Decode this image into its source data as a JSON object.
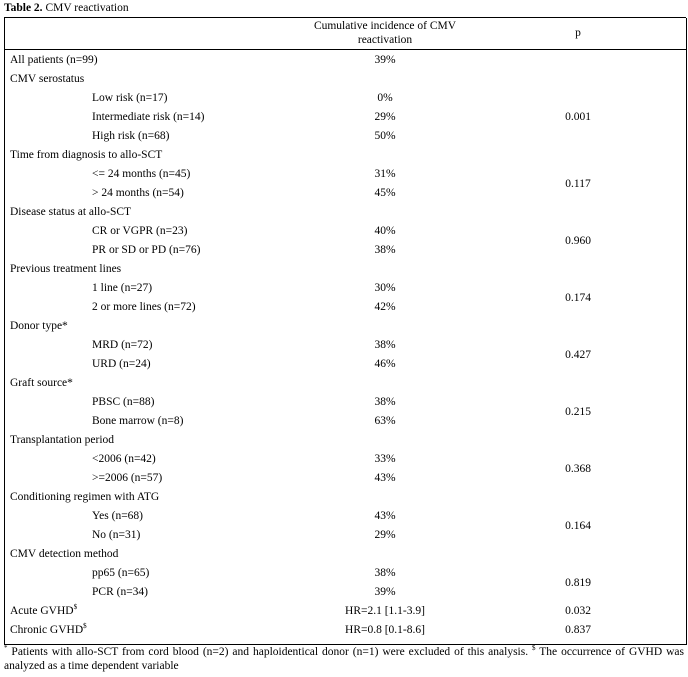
{
  "caption": {
    "label": "Table 2.",
    "text": "CMV reactivation"
  },
  "header": {
    "incidence_line1": "Cumulative incidence  of CMV",
    "incidence_line2": "reactivation",
    "p": "p"
  },
  "rows": [
    {
      "label": "All patients  (n=99)",
      "value": "39%",
      "indent": false
    },
    {
      "label": "CMV serostatus",
      "value": "",
      "indent": false
    },
    {
      "label": "Low risk (n=17)",
      "value": "0%",
      "indent": true
    },
    {
      "label": "Intermediate  risk (n=14)",
      "value": "29%",
      "indent": true
    },
    {
      "label": "High risk (n=68)",
      "value": "50%",
      "indent": true
    },
    {
      "label": "Time from diagnosis to allo-SCT",
      "value": "",
      "indent": false
    },
    {
      "label": "<= 24 months (n=45)",
      "value": "31%",
      "indent": true
    },
    {
      "label": "> 24 months (n=54)",
      "value": "45%",
      "indent": true
    },
    {
      "label": "Disease status at allo-SCT",
      "value": "",
      "indent": false
    },
    {
      "label": "CR or VGPR (n=23)",
      "value": "40%",
      "indent": true
    },
    {
      "label": "PR or SD or PD (n=76)",
      "value": "38%",
      "indent": true
    },
    {
      "label": "Previous treatment  lines",
      "value": "",
      "indent": false
    },
    {
      "label": "1 line (n=27)",
      "value": "30%",
      "indent": true
    },
    {
      "label": "2 or more lines (n=72)",
      "value": "42%",
      "indent": true
    },
    {
      "label": "Donor type*",
      "value": "",
      "indent": false
    },
    {
      "label": "MRD (n=72)",
      "value": "38%",
      "indent": true
    },
    {
      "label": "URD (n=24)",
      "value": "46%",
      "indent": true
    },
    {
      "label": "Graft source*",
      "value": "",
      "indent": false
    },
    {
      "label": "PBSC (n=88)",
      "value": "38%",
      "indent": true
    },
    {
      "label": "Bone marrow  (n=8)",
      "value": "63%",
      "indent": true
    },
    {
      "label": "Transplantation period",
      "value": "",
      "indent": false
    },
    {
      "label": "<2006 (n=42)",
      "value": "33%",
      "indent": true
    },
    {
      "label": ">=2006 (n=57)",
      "value": "43%",
      "indent": true
    },
    {
      "label": "Conditioning regimen  with ATG",
      "value": "",
      "indent": false
    },
    {
      "label": "Yes (n=68)",
      "value": "43%",
      "indent": true
    },
    {
      "label": "No (n=31)",
      "value": "29%",
      "indent": true
    },
    {
      "label": "CMV detection method",
      "value": "",
      "indent": false
    },
    {
      "label": "pp65 (n=65)",
      "value": "38%",
      "indent": true
    },
    {
      "label": "PCR (n=34)",
      "value": "39%",
      "indent": true
    },
    {
      "label": "Acute GVHD",
      "sup": "$",
      "value": "HR=2.1 [1.1-3.9]",
      "p": "0.032",
      "indent": false
    },
    {
      "label": "Chronic GVHD",
      "sup": "$",
      "value": "HR=0.8 [0.1-8.6]",
      "p": "0.837",
      "indent": false
    }
  ],
  "groups": [
    {
      "p": "0.001"
    },
    {
      "p": "0.117"
    },
    {
      "p": "0.960"
    },
    {
      "p": "0.174"
    },
    {
      "p": "0.427"
    },
    {
      "p": "0.215"
    },
    {
      "p": "0.368"
    },
    {
      "p": "0.164"
    },
    {
      "p": "0.819"
    }
  ],
  "footnote": {
    "star": "*",
    "text1": " Patients with allo-SCT from cord blood (n=2) and haploidentical donor (n=1) were excluded of this analysis. ",
    "dollar": "$",
    "text2": " The occurrence of GVHD was analyzed as a time dependent variable"
  }
}
